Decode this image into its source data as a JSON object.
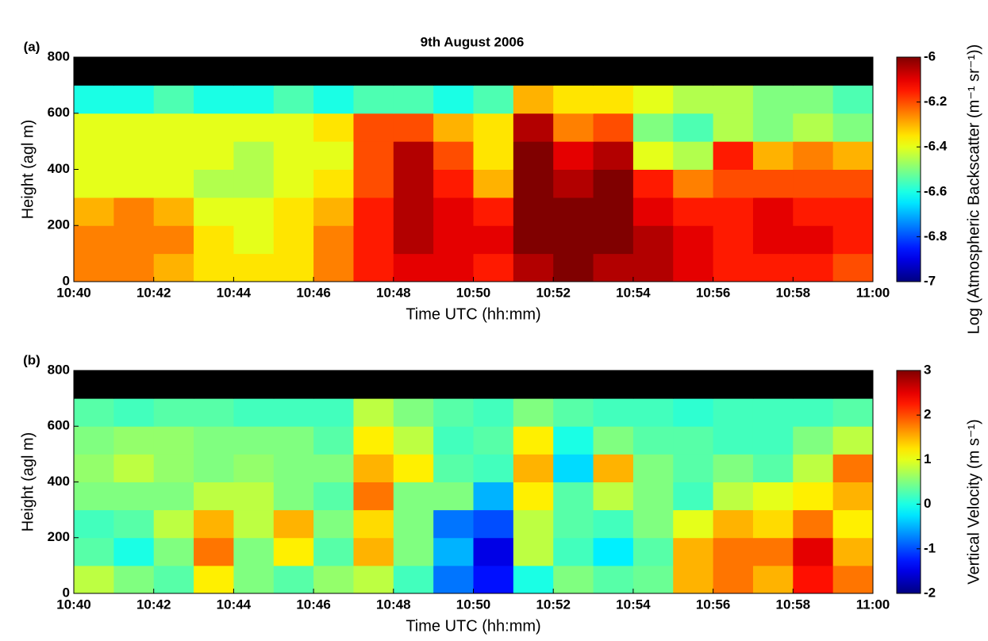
{
  "chart_data": [
    {
      "type": "heatmap",
      "title": "9th August 2006",
      "panel_label": "(a)",
      "x_label": "Time UTC (hh:mm)",
      "y_label": "Height (agl m)",
      "colorbar_label": "Log (Atmospheric Backscatter (m⁻¹ sr⁻¹))",
      "colormap": "jet",
      "missing_color": "#000000",
      "x": [
        640,
        641,
        642,
        643,
        644,
        645,
        646,
        647,
        648,
        649,
        650,
        651,
        652,
        653,
        654,
        655,
        656,
        657,
        658,
        659
      ],
      "y": [
        0,
        100,
        200,
        300,
        400,
        500,
        600,
        700
      ],
      "xlim": [
        640,
        660
      ],
      "xticks": [
        {
          "value": 640,
          "label": "10:40"
        },
        {
          "value": 642,
          "label": "10:42"
        },
        {
          "value": 644,
          "label": "10:44"
        },
        {
          "value": 646,
          "label": "10:46"
        },
        {
          "value": 648,
          "label": "10:48"
        },
        {
          "value": 650,
          "label": "10:50"
        },
        {
          "value": 652,
          "label": "10:52"
        },
        {
          "value": 654,
          "label": "10:54"
        },
        {
          "value": 656,
          "label": "10:56"
        },
        {
          "value": 658,
          "label": "10:58"
        },
        {
          "value": 660,
          "label": "11:00"
        }
      ],
      "ylim": [
        0,
        800
      ],
      "yticks": [
        0,
        200,
        400,
        600,
        800
      ],
      "zlim": [
        -7,
        -6
      ],
      "zticks": [
        -7,
        -6.8,
        -6.6,
        -6.4,
        -6.2,
        -6
      ],
      "z": [
        [
          -6.25,
          -6.25,
          -6.3,
          -6.35,
          -6.35,
          -6.35,
          -6.25,
          -6.15,
          -6.1,
          -6.1,
          -6.15,
          -6.05,
          -6.0,
          -6.05,
          -6.05,
          -6.1,
          -6.15,
          -6.15,
          -6.15,
          -6.2
        ],
        [
          -6.25,
          -6.25,
          -6.25,
          -6.35,
          -6.4,
          -6.35,
          -6.25,
          -6.15,
          -6.05,
          -6.1,
          -6.1,
          -6.0,
          -6.0,
          -6.0,
          -6.05,
          -6.1,
          -6.15,
          -6.1,
          -6.1,
          -6.15
        ],
        [
          -6.3,
          -6.25,
          -6.3,
          -6.4,
          -6.4,
          -6.35,
          -6.3,
          -6.15,
          -6.05,
          -6.1,
          -6.15,
          -6.0,
          -6.0,
          -6.0,
          -6.1,
          -6.15,
          -6.15,
          -6.1,
          -6.15,
          -6.15
        ],
        [
          -6.4,
          -6.4,
          -6.4,
          -6.45,
          -6.45,
          -6.4,
          -6.35,
          -6.2,
          -6.05,
          -6.15,
          -6.3,
          -6.0,
          -6.05,
          -6.0,
          -6.15,
          -6.25,
          -6.2,
          -6.2,
          -6.2,
          -6.2
        ],
        [
          -6.4,
          -6.4,
          -6.4,
          -6.4,
          -6.45,
          -6.4,
          -6.4,
          -6.2,
          -6.05,
          -6.2,
          -6.35,
          -6.0,
          -6.1,
          -6.05,
          -6.4,
          -6.45,
          -6.15,
          -6.3,
          -6.25,
          -6.3
        ],
        [
          -6.4,
          -6.4,
          -6.4,
          -6.4,
          -6.4,
          -6.4,
          -6.35,
          -6.2,
          -6.2,
          -6.3,
          -6.35,
          -6.05,
          -6.25,
          -6.2,
          -6.5,
          -6.55,
          -6.45,
          -6.5,
          -6.45,
          -6.5
        ],
        [
          -6.6,
          -6.6,
          -6.55,
          -6.6,
          -6.6,
          -6.55,
          -6.6,
          -6.55,
          -6.55,
          -6.6,
          -6.55,
          -6.3,
          -6.35,
          -6.35,
          -6.4,
          -6.45,
          -6.45,
          -6.5,
          -6.5,
          -6.55
        ],
        [
          null,
          null,
          null,
          null,
          null,
          null,
          null,
          null,
          null,
          null,
          null,
          null,
          null,
          null,
          null,
          null,
          null,
          null,
          null,
          null
        ]
      ]
    },
    {
      "type": "heatmap",
      "panel_label": "(b)",
      "x_label": "Time UTC (hh:mm)",
      "y_label": "Height (agl m)",
      "colorbar_label": "Vertical Velocity (m s⁻¹)",
      "colormap": "jet",
      "missing_color": "#000000",
      "x": [
        640,
        641,
        642,
        643,
        644,
        645,
        646,
        647,
        648,
        649,
        650,
        651,
        652,
        653,
        654,
        655,
        656,
        657,
        658,
        659
      ],
      "y": [
        0,
        100,
        200,
        300,
        400,
        500,
        600,
        700
      ],
      "xlim": [
        640,
        660
      ],
      "xticks": [
        {
          "value": 640,
          "label": "10:40"
        },
        {
          "value": 642,
          "label": "10:42"
        },
        {
          "value": 644,
          "label": "10:44"
        },
        {
          "value": 646,
          "label": "10:46"
        },
        {
          "value": 648,
          "label": "10:48"
        },
        {
          "value": 650,
          "label": "10:50"
        },
        {
          "value": 652,
          "label": "10:52"
        },
        {
          "value": 654,
          "label": "10:54"
        },
        {
          "value": 656,
          "label": "10:56"
        },
        {
          "value": 658,
          "label": "10:58"
        },
        {
          "value": 660,
          "label": "11:00"
        }
      ],
      "ylim": [
        0,
        800
      ],
      "yticks": [
        0,
        200,
        400,
        600,
        800
      ],
      "zlim": [
        -2,
        3
      ],
      "zticks": [
        -2,
        -1,
        0,
        1,
        2,
        3
      ],
      "z": [
        [
          0.8,
          0.5,
          0.3,
          1.2,
          0.5,
          0.3,
          0.6,
          0.8,
          0.2,
          -0.8,
          -1.3,
          0,
          0.5,
          0.3,
          0.4,
          1.5,
          1.8,
          1.5,
          2.3,
          1.8
        ],
        [
          0.3,
          0,
          0.5,
          1.8,
          0.5,
          1.2,
          0.3,
          1.5,
          0.5,
          -0.5,
          -1.5,
          0.8,
          0.2,
          -0.2,
          0.3,
          1.5,
          1.8,
          1.8,
          2.5,
          1.5
        ],
        [
          0.2,
          0.3,
          0.8,
          1.5,
          0.8,
          1.5,
          0.5,
          1.3,
          0.5,
          -0.8,
          -1.0,
          0.8,
          0.3,
          0.2,
          0.5,
          1.0,
          1.5,
          1.3,
          1.8,
          1.2
        ],
        [
          0.5,
          0.5,
          0.5,
          0.8,
          0.8,
          0.5,
          0.3,
          1.8,
          0.5,
          0.5,
          -0.5,
          1.2,
          0.3,
          0.8,
          0.5,
          0.2,
          0.8,
          1.0,
          1.2,
          1.5
        ],
        [
          0.6,
          0.8,
          0.6,
          0.5,
          0.6,
          0.5,
          0.5,
          1.5,
          1.2,
          0.3,
          0.2,
          1.5,
          -0.3,
          1.5,
          0.5,
          0.3,
          0.5,
          0.3,
          0.8,
          1.8
        ],
        [
          0.5,
          0.6,
          0.6,
          0.5,
          0.5,
          0.5,
          0.3,
          1.2,
          0.8,
          0.2,
          0.3,
          1.2,
          0,
          0.5,
          0.3,
          0.3,
          0.2,
          0.2,
          0.5,
          0.8
        ],
        [
          0.3,
          0.2,
          0.3,
          0.3,
          0.2,
          0.2,
          0.2,
          0.8,
          0.5,
          0.3,
          0.2,
          0.5,
          0.3,
          0.2,
          0.2,
          0.1,
          0.2,
          0.2,
          0.2,
          0.3
        ],
        [
          null,
          null,
          null,
          null,
          null,
          null,
          null,
          null,
          null,
          null,
          null,
          null,
          null,
          null,
          null,
          null,
          null,
          null,
          null,
          null
        ]
      ]
    }
  ]
}
